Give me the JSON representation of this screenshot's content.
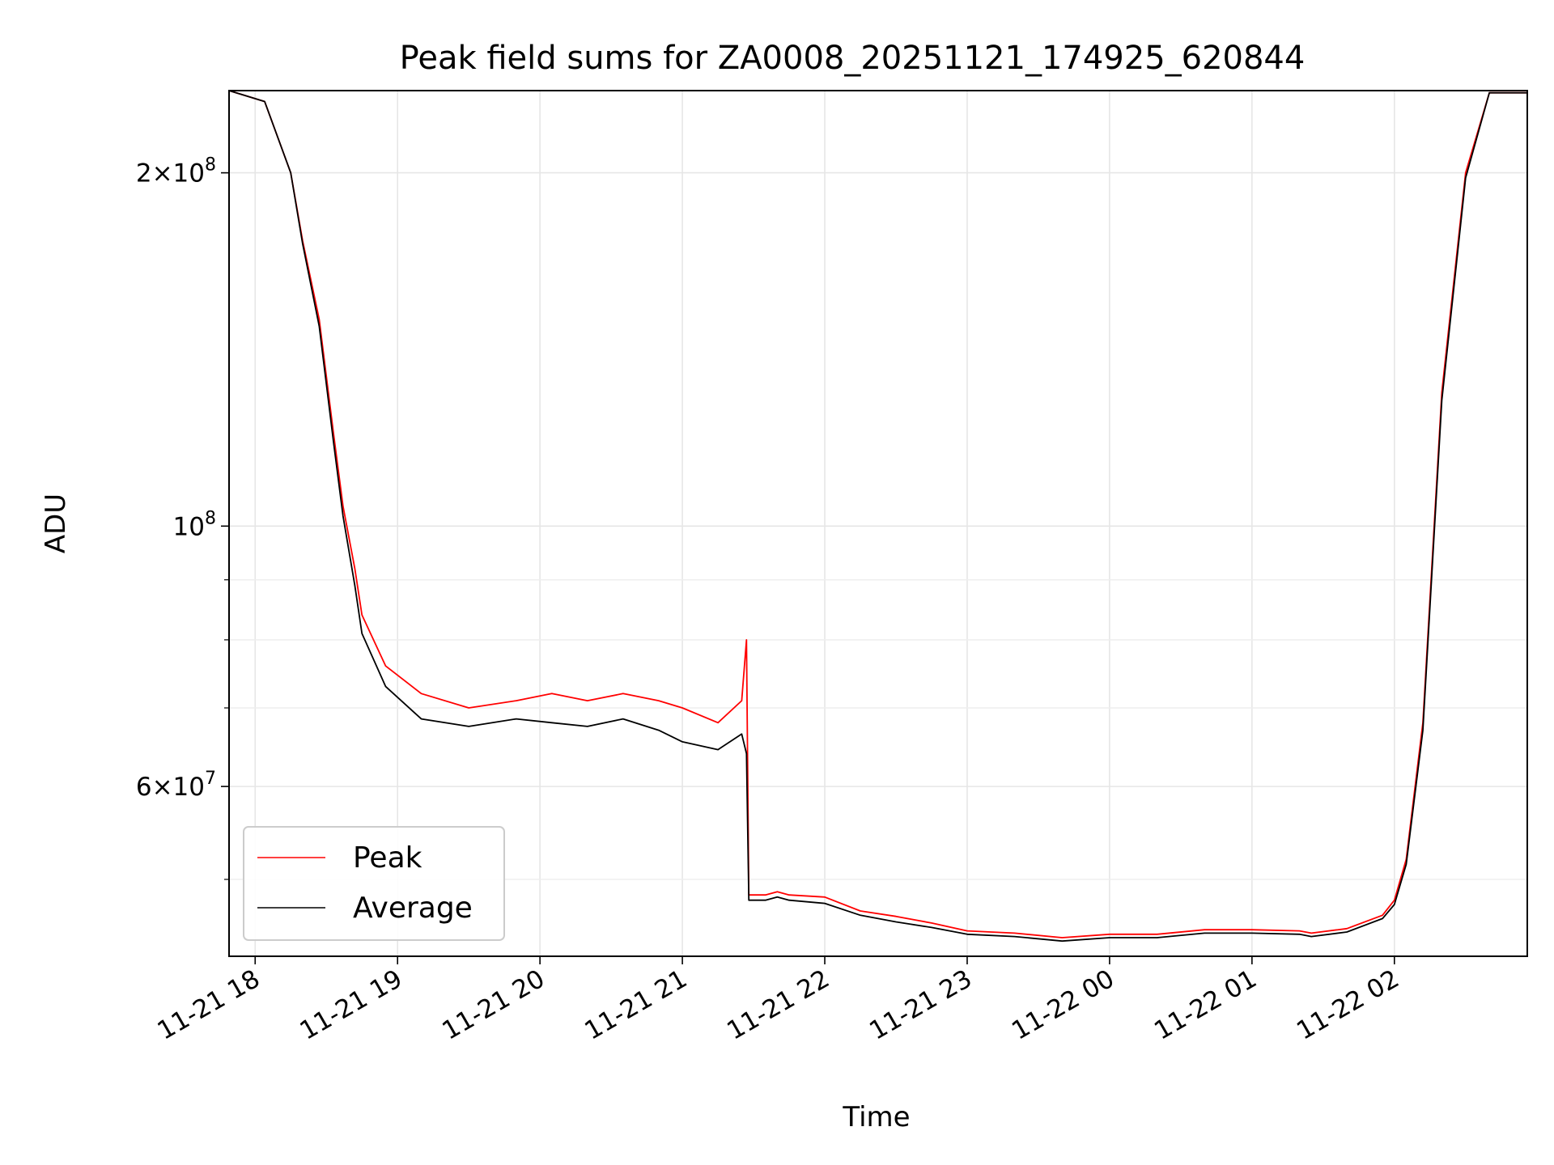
{
  "chart_data": {
    "type": "line",
    "title": "Peak field sums for ZA0008_20251121_174925_620844",
    "xlabel": "Time",
    "ylabel": "ADU",
    "y_scale": "log",
    "x_range": [
      "2025-11-21 17:49",
      "2025-11-22 02:56"
    ],
    "ylim": [
      43000000,
      235000000
    ],
    "grid": true,
    "legend_position": "lower-left",
    "x_ticks": [
      "11-21 18",
      "11-21 19",
      "11-21 20",
      "11-21 21",
      "11-21 22",
      "11-21 23",
      "11-22 00",
      "11-22 01",
      "11-22 02"
    ],
    "y_major_ticks": [
      {
        "label_mantissa": "2",
        "label_exp": "8",
        "value": 200000000
      },
      {
        "label_mantissa": "",
        "label_exp": "8",
        "value": 100000000
      },
      {
        "label_mantissa": "6",
        "label_exp": "7",
        "value": 60000000
      }
    ],
    "y_minor_values": [
      50000000,
      70000000,
      80000000,
      90000000
    ],
    "series": [
      {
        "name": "Peak",
        "color": "#ff0000",
        "x": [
          "2025-11-21 17:49",
          "2025-11-21 18:04",
          "2025-11-21 18:15",
          "2025-11-21 18:20",
          "2025-11-21 18:27",
          "2025-11-21 18:33",
          "2025-11-21 18:37",
          "2025-11-21 18:42",
          "2025-11-21 18:45",
          "2025-11-21 18:55",
          "2025-11-21 19:10",
          "2025-11-21 19:30",
          "2025-11-21 19:50",
          "2025-11-21 20:05",
          "2025-11-21 20:20",
          "2025-11-21 20:35",
          "2025-11-21 20:50",
          "2025-11-21 21:00",
          "2025-11-21 21:15",
          "2025-11-21 21:25",
          "2025-11-21 21:27",
          "2025-11-21 21:28",
          "2025-11-21 21:35",
          "2025-11-21 21:40",
          "2025-11-21 21:45",
          "2025-11-21 22:00",
          "2025-11-21 22:15",
          "2025-11-21 22:30",
          "2025-11-21 22:45",
          "2025-11-21 23:00",
          "2025-11-21 23:20",
          "2025-11-21 23:40",
          "2025-11-22 00:00",
          "2025-11-22 00:20",
          "2025-11-22 00:40",
          "2025-11-22 01:00",
          "2025-11-22 01:20",
          "2025-11-22 01:25",
          "2025-11-22 01:40",
          "2025-11-22 01:55",
          "2025-11-22 02:00",
          "2025-11-22 02:05",
          "2025-11-22 02:12",
          "2025-11-22 02:20",
          "2025-11-22 02:30",
          "2025-11-22 02:40",
          "2025-11-22 02:56"
        ],
        "values": [
          235000000,
          230000000,
          200000000,
          175000000,
          150000000,
          120000000,
          104000000,
          92000000,
          84000000,
          76000000,
          72000000,
          70000000,
          71000000,
          72000000,
          71000000,
          72000000,
          71000000,
          70000000,
          68000000,
          71000000,
          80000000,
          48500000,
          48500000,
          48800000,
          48500000,
          48300000,
          47000000,
          46500000,
          45900000,
          45200000,
          45000000,
          44600000,
          44900000,
          44900000,
          45300000,
          45300000,
          45200000,
          45000000,
          45400000,
          46600000,
          48000000,
          52000000,
          68000000,
          130000000,
          200000000,
          234000000,
          234000000
        ]
      },
      {
        "name": "Average",
        "color": "#000000",
        "x": [
          "2025-11-21 17:49",
          "2025-11-21 18:04",
          "2025-11-21 18:15",
          "2025-11-21 18:20",
          "2025-11-21 18:27",
          "2025-11-21 18:33",
          "2025-11-21 18:37",
          "2025-11-21 18:42",
          "2025-11-21 18:45",
          "2025-11-21 18:55",
          "2025-11-21 19:10",
          "2025-11-21 19:30",
          "2025-11-21 19:50",
          "2025-11-21 20:05",
          "2025-11-21 20:20",
          "2025-11-21 20:35",
          "2025-11-21 20:50",
          "2025-11-21 21:00",
          "2025-11-21 21:15",
          "2025-11-21 21:25",
          "2025-11-21 21:27",
          "2025-11-21 21:28",
          "2025-11-21 21:35",
          "2025-11-21 21:40",
          "2025-11-21 21:45",
          "2025-11-21 22:00",
          "2025-11-21 22:15",
          "2025-11-21 22:30",
          "2025-11-21 22:45",
          "2025-11-21 23:00",
          "2025-11-21 23:20",
          "2025-11-21 23:40",
          "2025-11-22 00:00",
          "2025-11-22 00:20",
          "2025-11-22 00:40",
          "2025-11-22 01:00",
          "2025-11-22 01:20",
          "2025-11-22 01:25",
          "2025-11-22 01:40",
          "2025-11-22 01:55",
          "2025-11-22 02:00",
          "2025-11-22 02:05",
          "2025-11-22 02:12",
          "2025-11-22 02:20",
          "2025-11-22 02:30",
          "2025-11-22 02:40",
          "2025-11-22 02:56"
        ],
        "values": [
          235000000,
          230000000,
          200000000,
          174000000,
          148000000,
          118000000,
          102000000,
          89000000,
          81000000,
          73000000,
          68500000,
          67500000,
          68500000,
          68000000,
          67500000,
          68500000,
          67000000,
          65500000,
          64500000,
          66500000,
          64000000,
          48000000,
          48000000,
          48300000,
          48000000,
          47700000,
          46600000,
          46000000,
          45500000,
          44900000,
          44700000,
          44300000,
          44600000,
          44600000,
          45000000,
          45000000,
          44900000,
          44700000,
          45100000,
          46300000,
          47600000,
          51500000,
          67000000,
          128000000,
          198000000,
          234000000,
          234000000
        ]
      }
    ]
  }
}
